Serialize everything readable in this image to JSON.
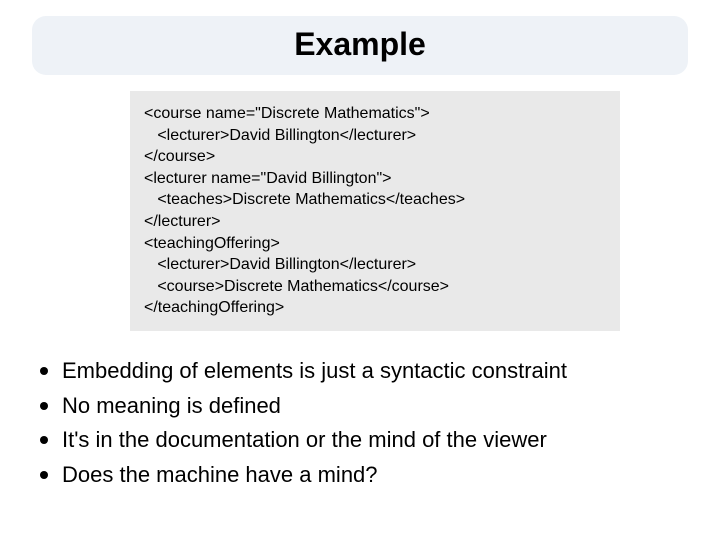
{
  "title": "Example",
  "code_lines": [
    "<course name=\"Discrete Mathematics\">",
    "   <lecturer>David Billington</lecturer>",
    "</course>",
    "<lecturer name=\"David Billington\">",
    "   <teaches>Discrete Mathematics</teaches>",
    "</lecturer>",
    "<teachingOffering>",
    "   <lecturer>David Billington</lecturer>",
    "   <course>Discrete Mathematics</course>",
    "</teachingOffering>"
  ],
  "bullets": [
    "Embedding of elements is just a syntactic constraint",
    "No meaning is defined",
    "It's in the documentation or the mind of the viewer",
    "Does the machine have a mind?"
  ],
  "colors": {
    "banner_bg": "#eef2f7",
    "code_bg": "#e9e9e9",
    "text": "#000000",
    "page_bg": "#ffffff"
  }
}
